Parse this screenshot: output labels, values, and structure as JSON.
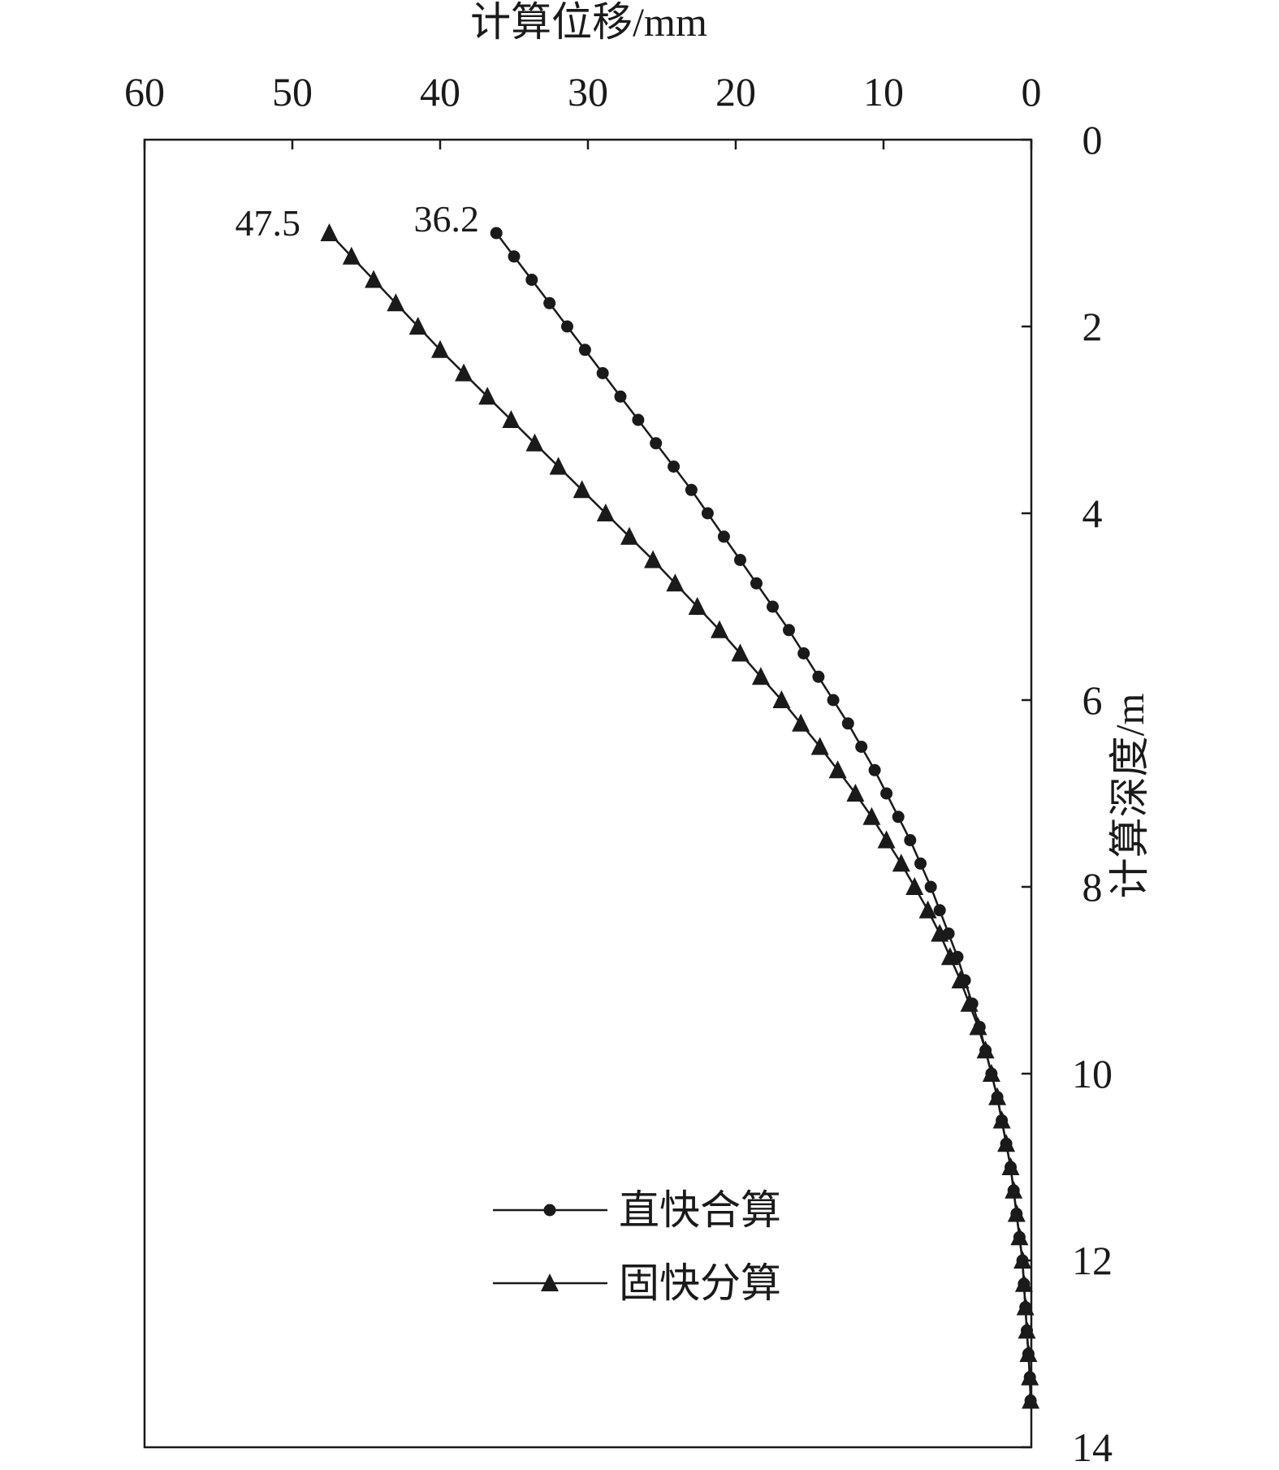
{
  "chart_data": {
    "type": "line",
    "x_axis": {
      "label": "计算位移/mm",
      "position": "top",
      "reversed": true,
      "range": [
        60,
        0
      ],
      "ticks": [
        60,
        50,
        40,
        30,
        20,
        10,
        0
      ]
    },
    "y_axis": {
      "label": "计算深度/m",
      "position": "right",
      "reversed": true,
      "range": [
        0,
        14
      ],
      "ticks": [
        0,
        2,
        4,
        6,
        8,
        10,
        12,
        14
      ]
    },
    "grid": false,
    "legend": {
      "placement": "lower-center",
      "entries": [
        {
          "label": "直快合算",
          "marker": "circle"
        },
        {
          "label": "固快分算",
          "marker": "triangle"
        }
      ]
    },
    "annotations": [
      {
        "text": "36.2",
        "series": 0
      },
      {
        "text": "47.5",
        "series": 1
      }
    ],
    "series": [
      {
        "name": "直快合算",
        "marker": "circle",
        "color": "#1a1a1a",
        "depth": [
          1.0,
          1.25,
          1.5,
          1.75,
          2.0,
          2.25,
          2.5,
          2.75,
          3.0,
          3.25,
          3.5,
          3.75,
          4.0,
          4.25,
          4.5,
          4.75,
          5.0,
          5.25,
          5.5,
          5.75,
          6.0,
          6.25,
          6.5,
          6.75,
          7.0,
          7.25,
          7.5,
          7.75,
          8.0,
          8.25,
          8.5,
          8.75,
          9.0,
          9.25,
          9.5,
          9.75,
          10.0,
          10.25,
          10.5,
          10.75,
          11.0,
          11.25,
          11.5,
          11.75,
          12.0,
          12.25,
          12.5,
          12.75,
          13.0,
          13.25,
          13.5
        ],
        "displacement": [
          36.2,
          35.0,
          33.8,
          32.6,
          31.4,
          30.2,
          29.0,
          27.8,
          26.6,
          25.4,
          24.2,
          23.0,
          21.9,
          20.8,
          19.7,
          18.6,
          17.5,
          16.4,
          15.4,
          14.4,
          13.4,
          12.4,
          11.5,
          10.6,
          9.8,
          9.0,
          8.2,
          7.5,
          6.8,
          6.2,
          5.6,
          5.0,
          4.5,
          4.0,
          3.5,
          3.1,
          2.7,
          2.3,
          2.0,
          1.7,
          1.4,
          1.2,
          1.0,
          0.8,
          0.6,
          0.5,
          0.4,
          0.3,
          0.2,
          0.1,
          0.05
        ]
      },
      {
        "name": "固快分算",
        "marker": "triangle",
        "color": "#1a1a1a",
        "depth": [
          1.0,
          1.25,
          1.5,
          1.75,
          2.0,
          2.25,
          2.5,
          2.75,
          3.0,
          3.25,
          3.5,
          3.75,
          4.0,
          4.25,
          4.5,
          4.75,
          5.0,
          5.25,
          5.5,
          5.75,
          6.0,
          6.25,
          6.5,
          6.75,
          7.0,
          7.25,
          7.5,
          7.75,
          8.0,
          8.25,
          8.5,
          8.75,
          9.0,
          9.25,
          9.5,
          9.75,
          10.0,
          10.25,
          10.5,
          10.75,
          11.0,
          11.25,
          11.5,
          11.75,
          12.0,
          12.25,
          12.5,
          12.75,
          13.0,
          13.25,
          13.5
        ],
        "displacement": [
          47.5,
          46.0,
          44.5,
          43.0,
          41.5,
          40.0,
          38.4,
          36.8,
          35.2,
          33.6,
          32.0,
          30.4,
          28.8,
          27.2,
          25.6,
          24.1,
          22.6,
          21.1,
          19.7,
          18.3,
          16.9,
          15.6,
          14.3,
          13.1,
          11.9,
          10.8,
          9.8,
          8.8,
          7.9,
          7.0,
          6.2,
          5.5,
          4.8,
          4.2,
          3.6,
          3.1,
          2.7,
          2.3,
          2.0,
          1.7,
          1.4,
          1.2,
          1.0,
          0.8,
          0.6,
          0.5,
          0.4,
          0.3,
          0.2,
          0.1,
          0.05
        ]
      }
    ]
  }
}
